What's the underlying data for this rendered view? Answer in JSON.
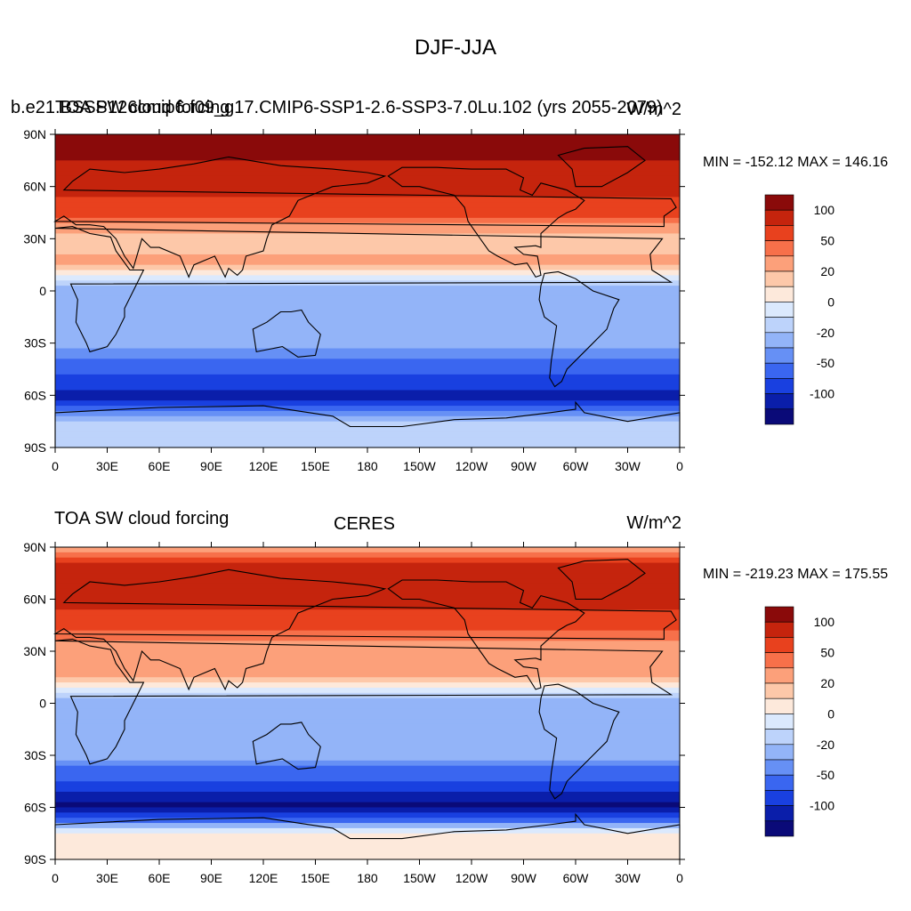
{
  "main_title": "DJF-JJA",
  "panels": [
    {
      "left_title": "b.e21.BSSP126cmip6.f09_g17.CMIP6-SSP1-2.6-SSP3-7.0Lu.102 (yrs 2055-2079)",
      "left_title_overlap": "TOA SW cloud forcing",
      "center_title": "",
      "units": "W/m^2",
      "stats": "MIN = -152.12 MAX = 146.16"
    },
    {
      "left_title": "TOA SW cloud forcing",
      "center_title": "CERES",
      "units": "W/m^2",
      "stats": "MIN = -219.23 MAX = 175.55"
    }
  ],
  "colors": {
    "levels": [
      "#0a0a78",
      "#0a1eaa",
      "#1940e0",
      "#3a66f0",
      "#6690f5",
      "#93b4f8",
      "#bdd3fb",
      "#dbe9fd",
      "#fde9db",
      "#fdc8a9",
      "#fca07a",
      "#f7704a",
      "#e8411e",
      "#c5240d",
      "#8a0a0a"
    ],
    "land_outline": "#000000"
  },
  "colorbar": {
    "labels": [
      "100",
      "50",
      "20",
      "0",
      "-20",
      "-50",
      "-100"
    ]
  },
  "chart_data": [
    {
      "type": "heatmap",
      "title": "b.e21.BSSP126cmip6.f09_g17.CMIP6-SSP1-2.6-SSP3-7.0Lu.102 (yrs 2055-2079)",
      "variable": "TOA SW cloud forcing",
      "units": "W/m^2",
      "xlabel": "",
      "ylabel": "",
      "x_ticks": [
        "0",
        "30E",
        "60E",
        "90E",
        "120E",
        "150E",
        "180",
        "150W",
        "120W",
        "90W",
        "60W",
        "30W",
        "0"
      ],
      "y_ticks": [
        "90N",
        "60N",
        "30N",
        "0",
        "30S",
        "60S",
        "90S"
      ],
      "xlim": [
        0,
        360
      ],
      "ylim": [
        -90,
        90
      ],
      "min": -152.12,
      "max": 146.16,
      "colorbar_levels": [
        -100,
        -50,
        -20,
        0,
        20,
        50,
        100
      ],
      "zonal_profile": {
        "lat": [
          90,
          75,
          60,
          45,
          30,
          15,
          0,
          -15,
          -30,
          -45,
          -60,
          -75,
          -90
        ],
        "value": [
          120,
          100,
          85,
          55,
          10,
          25,
          -35,
          -25,
          -20,
          -70,
          -110,
          -15,
          -10
        ]
      }
    },
    {
      "type": "heatmap",
      "title": "CERES",
      "variable": "TOA SW cloud forcing",
      "units": "W/m^2",
      "xlabel": "",
      "ylabel": "",
      "x_ticks": [
        "0",
        "30E",
        "60E",
        "90E",
        "120E",
        "150E",
        "180",
        "150W",
        "120W",
        "90W",
        "60W",
        "30W",
        "0"
      ],
      "y_ticks": [
        "90N",
        "60N",
        "30N",
        "0",
        "30S",
        "60S",
        "90S"
      ],
      "xlim": [
        0,
        360
      ],
      "ylim": [
        -90,
        90
      ],
      "min": -219.23,
      "max": 175.55,
      "colorbar_levels": [
        -100,
        -50,
        -20,
        0,
        20,
        50,
        100
      ],
      "zonal_profile": {
        "lat": [
          90,
          75,
          60,
          45,
          30,
          15,
          0,
          -15,
          -30,
          -45,
          -60,
          -75,
          -90
        ],
        "value": [
          20,
          100,
          90,
          60,
          20,
          25,
          -30,
          -25,
          -25,
          -75,
          -130,
          10,
          10
        ]
      }
    }
  ]
}
